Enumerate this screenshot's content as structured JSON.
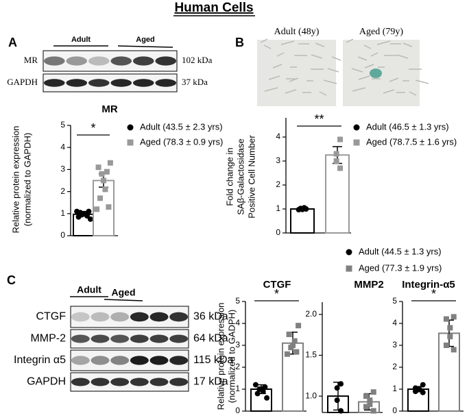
{
  "title": "Human Cells",
  "panels": {
    "A": {
      "label": "A",
      "blot": {
        "groups": [
          "Adult",
          "Aged"
        ],
        "rows": [
          {
            "name": "MR",
            "size": "102 kDa"
          },
          {
            "name": "GAPDH",
            "size": "37 kDa"
          }
        ]
      }
    },
    "B": {
      "label": "B",
      "images": [
        "Adult (48y)",
        "Aged (79y)"
      ]
    },
    "C": {
      "label": "C",
      "blot": {
        "groups": [
          "Adult",
          "Aged"
        ],
        "rows": [
          {
            "name": "CTGF",
            "size": "36 kDa"
          },
          {
            "name": "MMP-2",
            "size": "64 kDa"
          },
          {
            "name": "Integrin α5",
            "size": "115 kDa"
          },
          {
            "name": "GAPDH",
            "size": "17 kDa"
          }
        ]
      },
      "legend": [
        {
          "name": "Adult (44.5 ± 1.3 yrs)",
          "color": "#000000"
        },
        {
          "name": "Aged (77.3 ± 1.9 yrs)",
          "color": "#808080"
        }
      ]
    }
  },
  "chart_data": [
    {
      "type": "bar",
      "title": "MR",
      "ylabel": [
        "Relative protein expression",
        "(normalized to GAPDH)"
      ],
      "ylim": [
        0,
        5
      ],
      "yticks": [
        0,
        1,
        2,
        3,
        4,
        5
      ],
      "significance": "*",
      "series": [
        {
          "name": "Adult (43.5 ± 2.3 yrs)",
          "color": "#000000",
          "value": 0.97,
          "error": 0.05,
          "points": [
            0.75,
            0.85,
            0.9,
            0.95,
            1.0,
            1.0,
            1.05,
            1.1,
            1.1
          ]
        },
        {
          "name": "Aged (78.3 ± 0.9 yrs)",
          "color": "#999999",
          "value": 2.5,
          "error": 0.3,
          "points": [
            3.3,
            3.1,
            2.9,
            2.8,
            2.5,
            2.1,
            1.7,
            1.3,
            1.2
          ]
        }
      ]
    },
    {
      "type": "bar",
      "ylabel": [
        "Fold change in",
        "SAβ-Galactosidase",
        "Positive Cell Number"
      ],
      "ylim": [
        0,
        4.8
      ],
      "yticks": [
        0,
        1,
        2,
        3,
        4
      ],
      "significance": "**",
      "series": [
        {
          "name": "Adult (46.5 ± 1.3 yrs)",
          "color": "#000000",
          "value": 1.0,
          "error": 0.03,
          "points": [
            1.0,
            1.02,
            0.98,
            1.05,
            0.97
          ]
        },
        {
          "name": "Aged (78.7.5 ± 1.6 yrs)",
          "color": "#999999",
          "value": 3.25,
          "error": 0.35,
          "points": [
            3.9,
            3.3,
            3.0,
            2.7
          ]
        }
      ]
    },
    {
      "type": "bar",
      "title": "CTGF",
      "ylabel": [
        "Relative protein expression",
        "(normalized to GADPH)"
      ],
      "ylim": [
        0,
        5
      ],
      "yticks": [
        0,
        1,
        2,
        3,
        4,
        5
      ],
      "significance": "*",
      "series": [
        {
          "color": "#000000",
          "value": 1.0,
          "error": 0.2,
          "points": [
            0.6,
            0.8,
            0.9,
            1.0,
            1.0,
            1.1,
            1.2
          ]
        },
        {
          "color": "#808080",
          "value": 3.1,
          "error": 0.5,
          "points": [
            3.9,
            3.5,
            3.2,
            3.0,
            2.9,
            2.7,
            2.6
          ]
        }
      ]
    },
    {
      "type": "bar",
      "title": "MMP2",
      "ylim": [
        0.8,
        2.15
      ],
      "yticks": [
        {
          "value": 1,
          "label": "1.0"
        },
        {
          "value": 1.5,
          "label": "1.5"
        },
        {
          "value": 2,
          "label": "2.0"
        }
      ],
      "series": [
        {
          "color": "#000000",
          "value": 1.0,
          "error": 0.17,
          "points": [
            0.82,
            0.95,
            1.1,
            1.15
          ]
        },
        {
          "color": "#808080",
          "value": 0.93,
          "error": 0.1,
          "points": [
            0.82,
            0.87,
            0.9,
            0.95,
            1.0,
            1.05
          ]
        }
      ]
    },
    {
      "type": "bar",
      "title": "Integrin-α5",
      "ylim": [
        0,
        5
      ],
      "yticks": [
        0,
        1,
        2,
        3,
        4,
        5
      ],
      "significance": "*",
      "series": [
        {
          "color": "#000000",
          "value": 1.0,
          "error": 0.12,
          "points": [
            0.85,
            0.9,
            1.0,
            1.0,
            1.05,
            1.2
          ]
        },
        {
          "color": "#808080",
          "value": 3.55,
          "error": 0.6,
          "points": [
            4.3,
            4.2,
            3.8,
            3.4,
            3.0,
            2.8
          ]
        }
      ]
    }
  ]
}
